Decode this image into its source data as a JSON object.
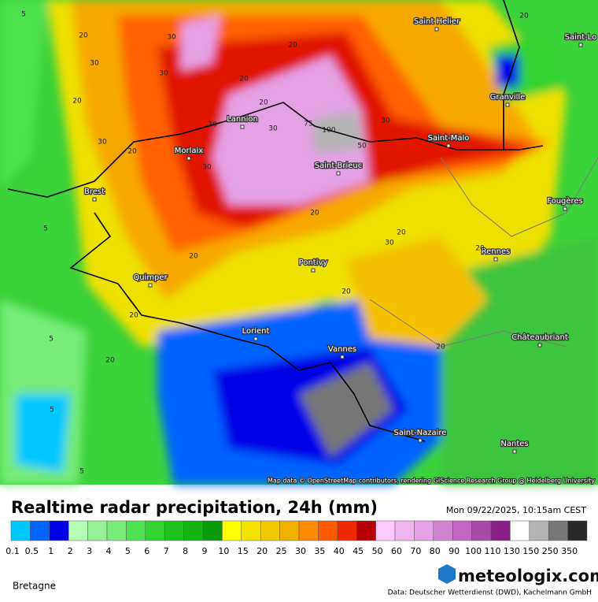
{
  "map": {
    "region": "Bretagne",
    "attribution": "Map data © OpenStreetMap contributors, rendering GIScience Research Group @ Heidelberg University",
    "cities": [
      "Saint Helier",
      "Saint-Lo",
      "Granville",
      "Lannion",
      "Morlaix",
      "Saint-Malo",
      "Saint-Brieuc",
      "Brest",
      "Fougères",
      "Rennes",
      "Pontivy",
      "Quimper",
      "Lorient",
      "Châteaubriant",
      "Vannes",
      "Saint-Nazaire",
      "Nantes"
    ],
    "contour_labels": [
      "20",
      "30",
      "20",
      "30",
      "20",
      "30",
      "20",
      "20",
      "30",
      "30",
      "20",
      "20",
      "30",
      "20",
      "100",
      "75",
      "50",
      "30",
      "20",
      "20",
      "30",
      "20",
      "20",
      "20",
      "20",
      "5",
      "5",
      "5",
      "5",
      "20",
      "5",
      "20"
    ]
  },
  "header": {
    "title": "Realtime radar precipitation, 24h (mm)",
    "timestamp": "Mon 09/22/2025, 10:15am CEST"
  },
  "legend": [
    {
      "label": "0.1",
      "color": "#00c8ff"
    },
    {
      "label": "0.5",
      "color": "#0064ff"
    },
    {
      "label": "1",
      "color": "#0000e6"
    },
    {
      "label": "2",
      "color": "#b4ffb4"
    },
    {
      "label": "3",
      "color": "#96f096"
    },
    {
      "label": "4",
      "color": "#78eb78"
    },
    {
      "label": "5",
      "color": "#50e150"
    },
    {
      "label": "6",
      "color": "#32d232"
    },
    {
      "label": "7",
      "color": "#1ec31e"
    },
    {
      "label": "8",
      "color": "#14b414"
    },
    {
      "label": "9",
      "color": "#0a9b0a"
    },
    {
      "label": "10",
      "color": "#ffff00"
    },
    {
      "label": "15",
      "color": "#f5e100"
    },
    {
      "label": "20",
      "color": "#f0c800"
    },
    {
      "label": "25",
      "color": "#f0b000"
    },
    {
      "label": "30",
      "color": "#ff8c00"
    },
    {
      "label": "35",
      "color": "#ff5a00"
    },
    {
      "label": "40",
      "color": "#f02800"
    },
    {
      "label": "45",
      "color": "#b40000"
    },
    {
      "label": "50",
      "color": "#ffc8ff"
    },
    {
      "label": "60",
      "color": "#f0b4f0"
    },
    {
      "label": "70",
      "color": "#e6a0e6"
    },
    {
      "label": "80",
      "color": "#d282d2"
    },
    {
      "label": "90",
      "color": "#c364c3"
    },
    {
      "label": "100",
      "color": "#aa4baa"
    },
    {
      "label": "110",
      "color": "#8c1e8c"
    },
    {
      "label": "130",
      "color": "#ffffff"
    },
    {
      "label": "150",
      "color": "#b4b4b4"
    },
    {
      "label": "250",
      "color": "#787878"
    },
    {
      "label": "350",
      "color": "#282828"
    }
  ],
  "footer": {
    "brand": "meteologix.com",
    "credit": "Data: Deutscher Wetterdienst (DWD), Kachelmann GmbH"
  }
}
